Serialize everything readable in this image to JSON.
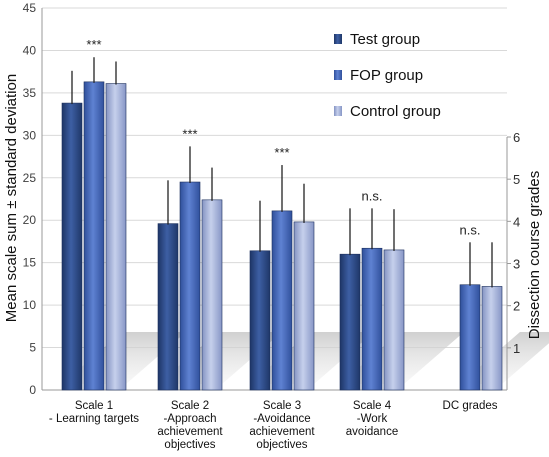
{
  "chart_data": {
    "type": "bar",
    "ylabel": "Mean scale sum ± standard deviation",
    "y2label": "Dissection course grades",
    "ylim": [
      0,
      45
    ],
    "yticks": [
      "0",
      "5",
      "10",
      "15",
      "20",
      "25",
      "30",
      "35",
      "40",
      "45"
    ],
    "y2lim": [
      0,
      6
    ],
    "y2ticks": [
      "1",
      "2",
      "3",
      "4",
      "5",
      "6"
    ],
    "categories": [
      [
        "Scale 1",
        "- Learning targets"
      ],
      [
        "Scale 2",
        "-Approach",
        "achievement",
        "objectives"
      ],
      [
        "Scale 3",
        "-Avoidance",
        "achievement",
        "objectives"
      ],
      [
        "Scale 4",
        "-Work",
        "avoidance"
      ],
      [
        "DC grades"
      ]
    ],
    "significance": [
      "***",
      "***",
      "***",
      "n.s.",
      "n.s."
    ],
    "series": [
      {
        "name": "Test group",
        "color": "#2e4c86",
        "values": [
          33.8,
          19.6,
          16.4,
          16.0,
          null
        ],
        "errors": [
          3.8,
          5.1,
          5.9,
          5.4,
          null
        ]
      },
      {
        "name": "FOP group",
        "color": "#4668b8",
        "values": [
          36.3,
          24.5,
          21.1,
          16.7,
          12.4
        ],
        "errors": [
          2.9,
          4.2,
          5.4,
          4.7,
          5.0
        ]
      },
      {
        "name": "Control group",
        "color": "#a4b2da",
        "values": [
          36.1,
          22.4,
          19.8,
          16.5,
          12.2
        ],
        "errors": [
          2.6,
          3.8,
          4.5,
          4.8,
          5.2
        ]
      }
    ],
    "legend": "top-right"
  }
}
